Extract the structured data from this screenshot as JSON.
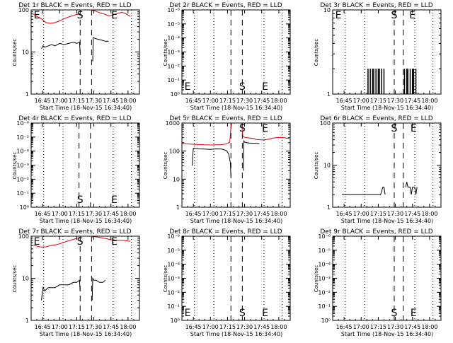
{
  "colors": {
    "events": "#000000",
    "lld": "#e00000",
    "axis": "#000000",
    "background": "#ffffff"
  },
  "shared": {
    "ylabel": "Counts/sec",
    "xlabel": "Start Time (18-Nov-15 16:34:40)",
    "start_label": "S",
    "end_label": "E"
  },
  "chart_data": [
    {
      "type": "line",
      "title": "Det 1r BLACK = Events, RED = LLD",
      "ylabel": "Counts/sec",
      "xlabel": "Start Time (18-Nov-15 16:34:40)",
      "x_ticks": [
        "16:45",
        "17:00",
        "17:15",
        "17:30",
        "17:45",
        "18:00"
      ],
      "x_tick_minutes": [
        45,
        60,
        75,
        90,
        105,
        120
      ],
      "xlim_minutes": [
        35,
        130
      ],
      "yscale": "log",
      "ylim": [
        1,
        100
      ],
      "y_ticks": [
        "1",
        "10",
        "100"
      ],
      "y_tick_values": [
        1,
        10,
        100
      ],
      "markers": {
        "E": 36,
        "S": 78,
        "E2": 108
      },
      "dashed_minutes": [
        78,
        88
      ],
      "dotted_minutes": [
        46,
        63,
        107,
        123
      ],
      "series": [
        {
          "name": "LLD",
          "color": "red",
          "x": [
            37,
            40,
            44,
            48,
            52,
            56,
            60,
            64,
            68,
            72,
            75,
            77,
            77.9,
            88.1,
            90,
            93,
            97,
            100,
            103,
            106,
            109,
            112,
            115,
            119,
            122
          ],
          "y": [
            80,
            70,
            62,
            50,
            48,
            50,
            55,
            62,
            68,
            74,
            78,
            80,
            82,
            95,
            98,
            90,
            82,
            78,
            72,
            75,
            80,
            84,
            88,
            78,
            70
          ]
        },
        {
          "name": "Events",
          "color": "black",
          "x": [
            44,
            45.5,
            47,
            50,
            53,
            56,
            60,
            64,
            68,
            72,
            75,
            77.5,
            77.9,
            89,
            89.5,
            91,
            94,
            97,
            100,
            103
          ],
          "y": [
            12,
            14,
            13,
            14,
            15,
            14,
            16,
            15,
            16,
            17,
            16,
            17,
            10,
            6,
            22,
            21,
            20,
            19,
            18,
            18
          ]
        }
      ]
    },
    {
      "type": "line",
      "title": "Det 2r BLACK = Events, RED = LLD",
      "ylabel": "Counts/sec",
      "xlabel": "Start Time (18-Nov-15 16:34:40)",
      "x_ticks": [
        "16:45",
        "17:00",
        "17:15",
        "17:30",
        "17:45",
        "18:00"
      ],
      "x_tick_minutes": [
        45,
        60,
        75,
        90,
        105,
        120
      ],
      "xlim_minutes": [
        35,
        130
      ],
      "yscale": "log",
      "ylim": [
        1,
        1000000
      ],
      "y_ticks": [
        "10⁰",
        "10⁻¹",
        "10⁻²",
        "10⁻³",
        "10⁻⁴",
        "10⁻⁵",
        "10⁻⁶"
      ],
      "y_tick_values": [
        1,
        10,
        100,
        1000,
        10000,
        100000,
        1000000
      ],
      "markers": {
        "E": 36,
        "S": 88,
        "E2": 108
      },
      "dashed_minutes": [
        78,
        88
      ],
      "dotted_minutes": [
        46,
        63,
        107,
        123
      ],
      "series": []
    },
    {
      "type": "line",
      "title": "Det 3r BLACK = Events, RED = LLD",
      "ylabel": "Counts/sec",
      "xlabel": "Start Time (18-Nov-15 16:34:40)",
      "x_ticks": [
        "16:45",
        "17:00",
        "17:15",
        "17:30",
        "17:45",
        "18:00"
      ],
      "x_tick_minutes": [
        45,
        60,
        75,
        90,
        105,
        120
      ],
      "xlim_minutes": [
        35,
        130
      ],
      "yscale": "log",
      "ylim": [
        1,
        10
      ],
      "y_ticks": [
        "1",
        "10"
      ],
      "y_tick_values": [
        1,
        10
      ],
      "markers": {
        "E": 36,
        "S": 89,
        "E2": 105
      },
      "dashed_minutes": [
        89,
        97
      ],
      "dotted_minutes": [
        46,
        63,
        107,
        123
      ],
      "series": [
        {
          "name": "Events",
          "color": "black",
          "style": "spikes",
          "x": [
            66,
            67,
            68,
            69,
            70,
            71,
            72,
            73,
            74,
            75,
            76,
            77,
            78,
            79,
            80,
            98,
            99,
            100,
            101,
            102,
            103,
            104,
            105,
            106,
            107,
            108,
            109
          ],
          "y": [
            2,
            1,
            2,
            1,
            2,
            2,
            1,
            2,
            1,
            2,
            2,
            1,
            2,
            1,
            2,
            2,
            1,
            2,
            2,
            1,
            2,
            1,
            2,
            2,
            1,
            2,
            1
          ]
        }
      ]
    },
    {
      "type": "line",
      "title": "Det 4r BLACK = Events, RED = LLD",
      "ylabel": "Counts/sec",
      "xlabel": "Start Time (18-Nov-15 16:34:40)",
      "x_ticks": [
        "16:45",
        "17:00",
        "17:15",
        "17:30",
        "17:45",
        "18:00"
      ],
      "x_tick_minutes": [
        45,
        60,
        75,
        90,
        105,
        120
      ],
      "xlim_minutes": [
        35,
        130
      ],
      "yscale": "log",
      "ylim": [
        1,
        1000000
      ],
      "y_ticks": [
        "10⁰",
        "10⁻¹",
        "10⁻²",
        "10⁻³",
        "10⁻⁴",
        "10⁻⁵",
        "10⁻⁶"
      ],
      "y_tick_values": [
        1,
        10,
        100,
        1000,
        10000,
        100000,
        1000000
      ],
      "markers": {
        "S": 78,
        "E2": 108
      },
      "dashed_minutes": [
        77,
        87
      ],
      "dotted_minutes": [
        46,
        63,
        107,
        123
      ],
      "series": []
    },
    {
      "type": "line",
      "title": "Det 5r BLACK = Events, RED = LLD",
      "ylabel": "Counts/sec",
      "xlabel": "Start Time (18-Nov-15 16:34:40)",
      "x_ticks": [
        "16:45",
        "17:00",
        "17:15",
        "17:30",
        "17:45",
        "18:00"
      ],
      "x_tick_minutes": [
        45,
        60,
        75,
        90,
        105,
        120
      ],
      "xlim_minutes": [
        35,
        130
      ],
      "yscale": "log",
      "ylim": [
        1,
        1000
      ],
      "y_ticks": [
        "1",
        "10",
        "100",
        "1000"
      ],
      "y_tick_values": [
        1,
        10,
        100,
        1000
      ],
      "markers": {
        "S": 88,
        "E2": 108
      },
      "dashed_minutes": [
        78,
        88
      ],
      "dotted_minutes": [
        46,
        63,
        107,
        123
      ],
      "series": [
        {
          "name": "LLD",
          "color": "red",
          "x": [
            35,
            40,
            45,
            50,
            55,
            60,
            65,
            70,
            74,
            77,
            78,
            78.5,
            79,
            87.5,
            88,
            88.5,
            90,
            92,
            95,
            98,
            100,
            103,
            106,
            110,
            115,
            120,
            125,
            129
          ],
          "y": [
            190,
            180,
            175,
            170,
            168,
            165,
            168,
            170,
            180,
            210,
            700,
            900,
            950,
            950,
            500,
            330,
            310,
            300,
            290,
            280,
            260,
            255,
            250,
            260,
            290,
            310,
            300,
            280
          ]
        },
        {
          "name": "Events",
          "color": "black",
          "x": [
            44,
            45,
            50,
            55,
            60,
            65,
            70,
            74,
            76,
            77.5,
            78,
            89,
            89.3,
            90,
            92,
            94,
            97,
            100,
            103
          ],
          "y": [
            30,
            125,
            120,
            118,
            115,
            120,
            118,
            105,
            80,
            40,
            12,
            20,
            230,
            210,
            200,
            195,
            190,
            190,
            185
          ]
        }
      ]
    },
    {
      "type": "line",
      "title": "Det 6r BLACK = Events, RED = LLD",
      "ylabel": "Counts/sec",
      "xlabel": "Start Time (18-Nov-15 16:34:40)",
      "x_ticks": [
        "16:45",
        "17:00",
        "17:15",
        "17:30",
        "17:45",
        "18:00"
      ],
      "x_tick_minutes": [
        45,
        60,
        75,
        90,
        105,
        120
      ],
      "xlim_minutes": [
        35,
        130
      ],
      "yscale": "log",
      "ylim": [
        1,
        100
      ],
      "y_ticks": [
        "1",
        "10",
        "100"
      ],
      "y_tick_values": [
        1,
        10,
        100
      ],
      "markers": {
        "S": 89,
        "E2": 106
      },
      "dashed_minutes": [
        89,
        97
      ],
      "dotted_minutes": [
        46,
        63,
        107,
        123
      ],
      "series": [
        {
          "name": "Events",
          "color": "black",
          "x": [
            43,
            45,
            47,
            49,
            51,
            53,
            55,
            57,
            59,
            61,
            63,
            65,
            67,
            69,
            71,
            73,
            75,
            77,
            79,
            80,
            81,
            99,
            100,
            101,
            102,
            103,
            104,
            105,
            106,
            107,
            108,
            109
          ],
          "y": [
            2,
            2,
            2,
            2,
            2,
            2,
            2,
            2,
            2,
            2,
            2,
            2,
            2,
            2,
            2,
            2,
            2,
            2,
            3,
            3,
            2,
            3,
            4,
            3,
            3,
            3,
            2,
            3,
            3,
            3,
            2,
            3
          ]
        }
      ]
    },
    {
      "type": "line",
      "title": "Det 7r BLACK = Events, RED = LLD",
      "ylabel": "Counts/sec",
      "xlabel": "Start Time (18-Nov-15 16:34:40)",
      "x_ticks": [
        "16:45",
        "17:00",
        "17:15",
        "17:30",
        "17:45",
        "18:00"
      ],
      "x_tick_minutes": [
        45,
        60,
        75,
        90,
        105,
        120
      ],
      "xlim_minutes": [
        35,
        130
      ],
      "yscale": "log",
      "ylim": [
        1,
        100
      ],
      "y_ticks": [
        "1",
        "10",
        "100"
      ],
      "y_tick_values": [
        1,
        10,
        100
      ],
      "markers": {
        "E": 36,
        "S": 78,
        "E2": 108
      },
      "dashed_minutes": [
        78,
        88
      ],
      "dotted_minutes": [
        46,
        63,
        107,
        123
      ],
      "series": [
        {
          "name": "LLD",
          "color": "red",
          "x": [
            37,
            40,
            44,
            48,
            52,
            56,
            60,
            64,
            68,
            72,
            76,
            77.9,
            88.1,
            90,
            93,
            97,
            100,
            103,
            106,
            110,
            114,
            118,
            122
          ],
          "y": [
            62,
            58,
            55,
            56,
            60,
            62,
            66,
            72,
            78,
            84,
            90,
            95,
            95,
            98,
            96,
            92,
            88,
            85,
            82,
            80,
            80,
            78,
            76
          ]
        },
        {
          "name": "Events",
          "color": "black",
          "x": [
            44,
            45.5,
            47,
            50,
            53,
            56,
            60,
            64,
            68,
            72,
            75,
            77.5,
            77.9,
            88.5,
            89,
            90,
            92,
            95,
            98,
            100
          ],
          "y": [
            3,
            6,
            5,
            6,
            6,
            6,
            7,
            7,
            7,
            8,
            8,
            9,
            5,
            3,
            10,
            9,
            9,
            8,
            8,
            9
          ]
        }
      ]
    },
    {
      "type": "line",
      "title": "Det 8r BLACK = Events, RED = LLD",
      "ylabel": "Counts/sec",
      "xlabel": "Start Time (18-Nov-15 16:34:40)",
      "x_ticks": [
        "16:45",
        "17:00",
        "17:15",
        "17:30",
        "17:45",
        "18:00"
      ],
      "x_tick_minutes": [
        45,
        60,
        75,
        90,
        105,
        120
      ],
      "xlim_minutes": [
        35,
        130
      ],
      "yscale": "log",
      "ylim": [
        1,
        1000000
      ],
      "y_ticks": [
        "10⁰",
        "10⁻¹",
        "10⁻²",
        "10⁻³",
        "10⁻⁴",
        "10⁻⁵",
        "10⁻⁶"
      ],
      "y_tick_values": [
        1,
        10,
        100,
        1000,
        10000,
        100000,
        1000000
      ],
      "markers": {
        "E": 36,
        "S": 88,
        "E2": 108
      },
      "dashed_minutes": [
        78,
        88
      ],
      "dotted_minutes": [
        46,
        63,
        107,
        123
      ],
      "series": []
    },
    {
      "type": "line",
      "title": "Det 9r BLACK = Events, RED = LLD",
      "ylabel": "Counts/sec",
      "xlabel": "Start Time (18-Nov-15 16:34:40)",
      "x_ticks": [
        "16:45",
        "17:00",
        "17:15",
        "17:30",
        "17:45",
        "18:00"
      ],
      "x_tick_minutes": [
        45,
        60,
        75,
        90,
        105,
        120
      ],
      "xlim_minutes": [
        35,
        130
      ],
      "yscale": "log",
      "ylim": [
        1,
        1000000
      ],
      "y_ticks": [
        "10⁰",
        "10⁻¹",
        "10⁻²",
        "10⁻³",
        "10⁻⁴",
        "10⁻⁵",
        "10⁻⁶"
      ],
      "y_tick_values": [
        1,
        10,
        100,
        1000,
        10000,
        100000,
        1000000
      ],
      "markers": {
        "S": 89,
        "E2": 106
      },
      "dashed_minutes": [
        89,
        97
      ],
      "dotted_minutes": [
        46,
        63,
        107,
        123
      ],
      "series": []
    }
  ]
}
